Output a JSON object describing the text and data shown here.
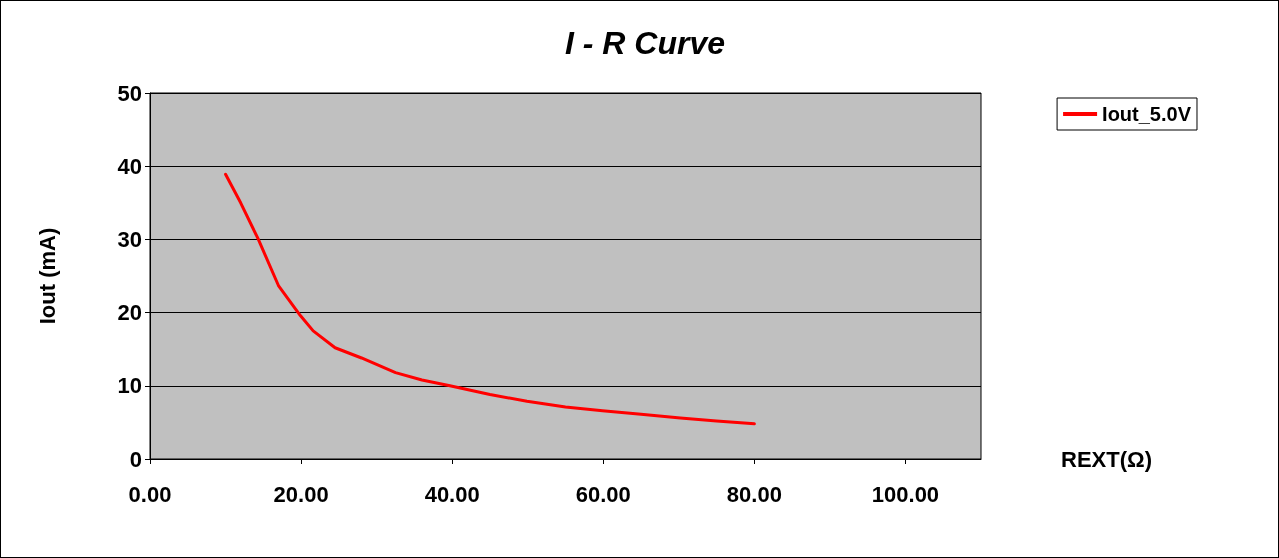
{
  "chart_data": {
    "type": "line",
    "title": "I - R Curve",
    "xlabel": "REXT(Ω)",
    "ylabel": "Iout (mA)",
    "series": [
      {
        "name": "Iout_5.0V",
        "color": "#ff0000",
        "x": [
          10,
          12,
          14.3,
          17,
          19.9,
          21.6,
          24.5,
          28,
          32.5,
          36,
          39.7,
          45,
          49.9,
          55,
          59.9,
          65,
          70.2,
          75,
          80
        ],
        "values": [
          38.9,
          35,
          30.1,
          23.7,
          19.6,
          17.5,
          15.2,
          13.8,
          11.8,
          10.8,
          10,
          8.8,
          7.9,
          7.1,
          6.6,
          6.1,
          5.6,
          5.2,
          4.8
        ]
      }
    ],
    "xlim": [
      0,
      110
    ],
    "xticks": [
      {
        "value": 0,
        "label": "0.00"
      },
      {
        "value": 20,
        "label": "20.00"
      },
      {
        "value": 40,
        "label": "40.00"
      },
      {
        "value": 60,
        "label": "60.00"
      },
      {
        "value": 80,
        "label": "80.00"
      },
      {
        "value": 100,
        "label": "100.00"
      }
    ],
    "ylim": [
      0,
      50
    ],
    "yticks": [
      0,
      10,
      20,
      30,
      40,
      50
    ],
    "grid": "y",
    "legend": "top right",
    "marker": "none",
    "line_style": "solid"
  }
}
